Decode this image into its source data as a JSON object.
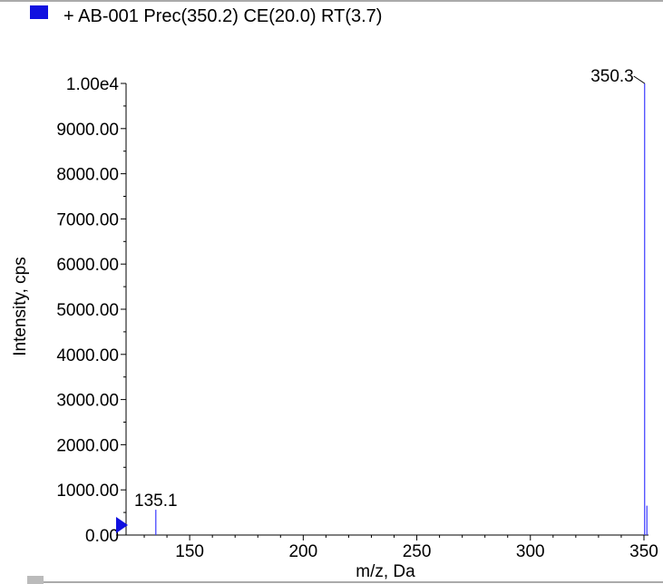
{
  "legend": {
    "swatch_color": "#1010e0",
    "label": "+ AB-001 Prec(350.2) CE(20.0) RT(3.7)"
  },
  "chart_data": {
    "type": "bar",
    "title": "",
    "xlabel": "m/z, Da",
    "ylabel": "Intensity, cps",
    "xlim": [
      122,
      352
    ],
    "ylim": [
      0,
      10000
    ],
    "x_ticks": [
      150,
      200,
      250,
      300,
      350
    ],
    "x_tick_labels": [
      "150",
      "200",
      "250",
      "300",
      "350"
    ],
    "y_ticks": [
      0,
      1000,
      2000,
      3000,
      4000,
      5000,
      6000,
      7000,
      8000,
      9000,
      10000
    ],
    "y_tick_labels": [
      "0.00",
      "1000.00",
      "2000.00",
      "3000.00",
      "4000.00",
      "5000.00",
      "6000.00",
      "7000.00",
      "8000.00",
      "9000.00",
      "1.00e4"
    ],
    "series": [
      {
        "name": "+ AB-001 Prec(350.2) CE(20.0) RT(3.7)",
        "color": "#3a3aff",
        "points": [
          {
            "x": 135.1,
            "y": 560
          },
          {
            "x": 350.3,
            "y": 10000
          },
          {
            "x": 351.3,
            "y": 650
          }
        ]
      }
    ],
    "annotations": [
      {
        "text": "350.3",
        "x": 350.3,
        "y": 10000
      },
      {
        "text": "135.1",
        "x": 135.1,
        "y": 560
      }
    ],
    "grid": false,
    "legend_position": "top-left"
  }
}
